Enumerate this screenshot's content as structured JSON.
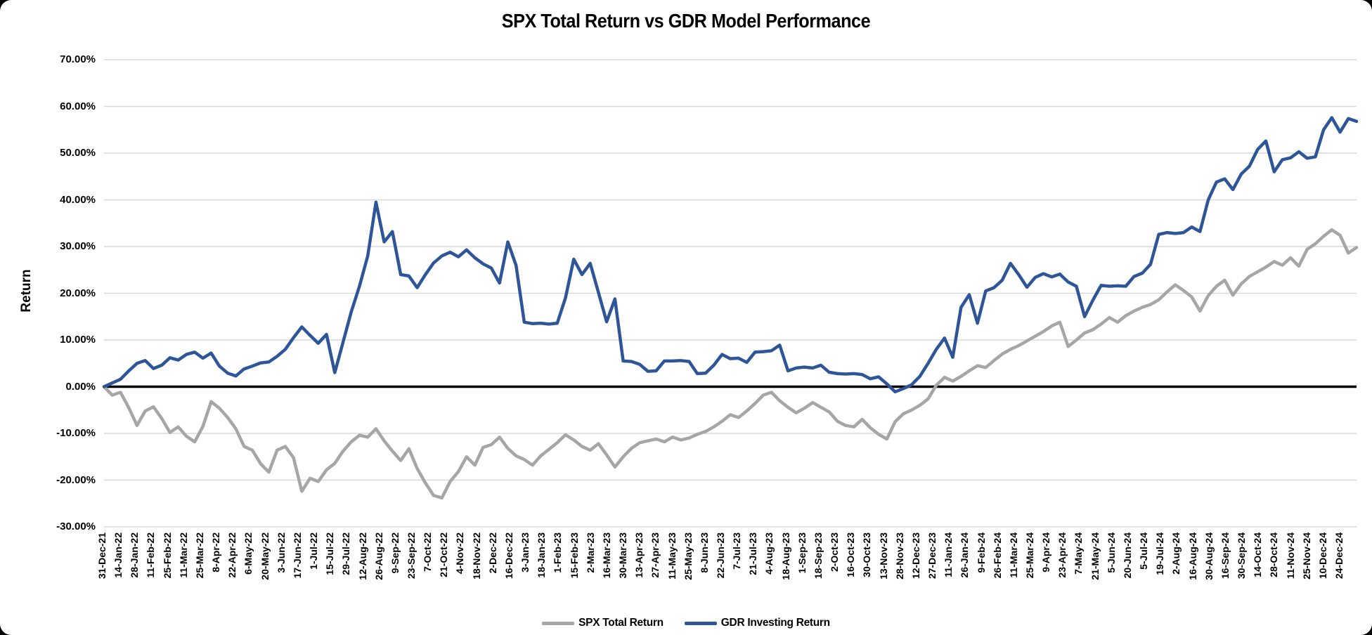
{
  "chart_data": {
    "type": "line",
    "title": "SPX Total Return vs GDR Model Performance",
    "xlabel": "",
    "ylabel": "Return",
    "ylim": [
      -30,
      70
    ],
    "y_tick_labels": [
      "70.00%",
      "60.00%",
      "50.00%",
      "40.00%",
      "30.00%",
      "20.00%",
      "10.00%",
      "0.00%",
      "-10.00%",
      "-20.00%",
      "-30.00%"
    ],
    "y_tick_values": [
      70,
      60,
      50,
      40,
      30,
      20,
      10,
      0,
      -10,
      -20,
      -30
    ],
    "grid": "horizontal-only",
    "zero_line": true,
    "legend_position": "bottom-center",
    "x_tick_labels": [
      "31-Dec-21",
      "14-Jan-22",
      "28-Jan-22",
      "11-Feb-22",
      "25-Feb-22",
      "11-Mar-22",
      "25-Mar-22",
      "8-Apr-22",
      "22-Apr-22",
      "6-May-22",
      "20-May-22",
      "3-Jun-22",
      "17-Jun-22",
      "1-Jul-22",
      "15-Jul-22",
      "29-Jul-22",
      "12-Aug-22",
      "26-Aug-22",
      "9-Sep-22",
      "23-Sep-22",
      "7-Oct-22",
      "21-Oct-22",
      "4-Nov-22",
      "18-Nov-22",
      "2-Dec-22",
      "16-Dec-22",
      "3-Jan-23",
      "18-Jan-23",
      "1-Feb-23",
      "15-Feb-23",
      "2-Mar-23",
      "16-Mar-23",
      "30-Mar-23",
      "13-Apr-23",
      "27-Apr-23",
      "11-May-23",
      "25-May-23",
      "8-Jun-23",
      "22-Jun-23",
      "7-Jul-23",
      "21-Jul-23",
      "4-Aug-23",
      "18-Aug-23",
      "1-Sep-23",
      "18-Sep-23",
      "2-Oct-23",
      "16-Oct-23",
      "30-Oct-23",
      "13-Nov-23",
      "28-Nov-23",
      "12-Dec-23",
      "27-Dec-23",
      "11-Jan-24",
      "26-Jan-24",
      "9-Feb-24",
      "26-Feb-24",
      "11-Mar-24",
      "25-Mar-24",
      "9-Apr-24",
      "23-Apr-24",
      "7-May-24",
      "21-May-24",
      "5-Jun-24",
      "20-Jun-24",
      "5-Jul-24",
      "19-Jul-24",
      "2-Aug-24",
      "16-Aug-24",
      "30-Aug-24",
      "16-Sep-24",
      "30-Sep-24",
      "14-Oct-24",
      "28-Oct-24",
      "11-Nov-24",
      "25-Nov-24",
      "10-Dec-24",
      "24-Dec-24"
    ],
    "sampling_note": "values in percent, ~weekly samples (2 per x-tick interval) from 31-Dec-21 to 24-Dec-24, read off chart",
    "series": [
      {
        "name": "SPX Total Return",
        "color": "#a6a6a6",
        "unit": "%",
        "values": [
          0.0,
          -1.8,
          -1.2,
          -4.5,
          -8.3,
          -5.2,
          -4.3,
          -6.8,
          -9.8,
          -8.6,
          -10.6,
          -11.8,
          -8.5,
          -3.2,
          -4.6,
          -6.6,
          -9.0,
          -12.8,
          -13.6,
          -16.5,
          -18.3,
          -13.6,
          -12.8,
          -15.2,
          -22.4,
          -19.6,
          -20.3,
          -17.8,
          -16.4,
          -13.8,
          -11.8,
          -10.4,
          -10.8,
          -9.0,
          -11.6,
          -13.8,
          -15.8,
          -13.3,
          -17.5,
          -20.6,
          -23.3,
          -23.8,
          -20.3,
          -18.2,
          -15.0,
          -16.8,
          -13.0,
          -12.4,
          -10.8,
          -13.2,
          -14.8,
          -15.6,
          -16.8,
          -14.8,
          -13.4,
          -12.0,
          -10.3,
          -11.4,
          -12.8,
          -13.6,
          -12.2,
          -14.6,
          -17.2,
          -15.0,
          -13.2,
          -12.0,
          -11.6,
          -11.2,
          -11.8,
          -10.8,
          -11.4,
          -11.0,
          -10.2,
          -9.6,
          -8.6,
          -7.4,
          -6.0,
          -6.6,
          -5.2,
          -3.6,
          -1.8,
          -1.2,
          -3.0,
          -4.4,
          -5.6,
          -4.6,
          -3.4,
          -4.4,
          -5.4,
          -7.4,
          -8.3,
          -8.6,
          -7.0,
          -8.8,
          -10.2,
          -11.2,
          -7.5,
          -5.8,
          -5.0,
          -4.0,
          -2.6,
          0.3,
          2.0,
          1.2,
          2.2,
          3.4,
          4.5,
          4.1,
          5.6,
          7.0,
          8.0,
          8.8,
          9.8,
          10.8,
          11.8,
          13.0,
          13.8,
          8.6,
          10.0,
          11.5,
          12.2,
          13.4,
          14.8,
          13.8,
          15.2,
          16.2,
          17.0,
          17.6,
          18.6,
          20.3,
          21.8,
          20.6,
          19.2,
          16.2,
          19.5,
          21.5,
          22.8,
          19.6,
          22.0,
          23.6,
          24.6,
          25.6,
          26.8,
          26.0,
          27.6,
          25.8,
          29.4,
          30.6,
          32.2,
          33.6,
          32.4,
          28.6,
          29.8
        ]
      },
      {
        "name": "GDR Investing Return",
        "color": "#2e5597",
        "unit": "%",
        "values": [
          0.0,
          0.8,
          1.6,
          3.4,
          5.0,
          5.6,
          3.9,
          4.6,
          6.2,
          5.7,
          6.9,
          7.4,
          6.1,
          7.2,
          4.4,
          2.9,
          2.3,
          3.8,
          4.4,
          5.1,
          5.3,
          6.5,
          8.0,
          10.5,
          12.8,
          11.0,
          9.3,
          11.2,
          3.0,
          9.5,
          16.0,
          21.5,
          28.0,
          39.5,
          31.0,
          33.2,
          24.0,
          23.7,
          21.2,
          24.0,
          26.5,
          28.0,
          28.8,
          27.8,
          29.3,
          27.6,
          26.3,
          25.4,
          22.2,
          31.0,
          26.0,
          13.8,
          13.5,
          13.6,
          13.4,
          13.6,
          19.0,
          27.3,
          24.0,
          26.4,
          20.2,
          13.9,
          18.8,
          5.5,
          5.4,
          4.8,
          3.3,
          3.4,
          5.5,
          5.5,
          5.6,
          5.4,
          2.8,
          2.9,
          4.6,
          6.9,
          6.0,
          6.1,
          5.2,
          7.4,
          7.5,
          7.7,
          8.9,
          3.4,
          4.0,
          4.2,
          4.0,
          4.6,
          3.1,
          2.8,
          2.7,
          2.8,
          2.6,
          1.7,
          2.1,
          0.6,
          -1.1,
          -0.4,
          0.4,
          2.2,
          5.0,
          8.0,
          10.4,
          6.3,
          17.0,
          19.7,
          13.6,
          20.5,
          21.2,
          22.8,
          26.4,
          24.0,
          21.3,
          23.4,
          24.2,
          23.5,
          24.1,
          22.4,
          21.5,
          15.0,
          18.5,
          21.7,
          21.5,
          21.6,
          21.5,
          23.6,
          24.3,
          26.2,
          32.6,
          33.0,
          32.8,
          33.0,
          34.2,
          33.2,
          40.0,
          43.8,
          44.5,
          42.2,
          45.5,
          47.2,
          50.8,
          52.6,
          46.0,
          48.6,
          49.0,
          50.3,
          48.9,
          49.2,
          55.0,
          57.6,
          54.5,
          57.4,
          56.8
        ]
      }
    ],
    "colors": {
      "background": "#ffffff",
      "page_background": "#000000",
      "gridline": "#d9d9d9",
      "zero_line": "#000000",
      "text": "#000000"
    }
  }
}
